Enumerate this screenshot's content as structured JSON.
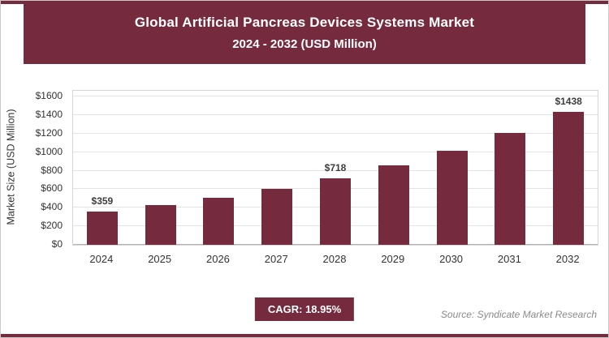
{
  "header": {
    "title_line1": "Global Artificial Pancreas Devices Systems Market",
    "title_line2": "2024 - 2032 (USD Million)"
  },
  "colors": {
    "maroon": "#752B3D",
    "bar": "#752B3D",
    "badge": "#752B3D"
  },
  "chart_data": {
    "type": "bar",
    "title": "Global Artificial Pancreas Devices Systems Market 2024 - 2032 (USD Million)",
    "categories": [
      "2024",
      "2025",
      "2026",
      "2027",
      "2028",
      "2029",
      "2030",
      "2031",
      "2032"
    ],
    "values": [
      359,
      427,
      508,
      604,
      718,
      854,
      1016,
      1209,
      1438
    ],
    "value_labels": [
      "$359",
      "",
      "",
      "",
      "$718",
      "",
      "",
      "",
      "$1438"
    ],
    "xlabel": "",
    "ylabel": "Market Size (USD Million)",
    "ylim": [
      0,
      1600
    ],
    "ytick_step": 200,
    "ytick_prefix": "$",
    "grid": true,
    "legend": false
  },
  "footer": {
    "cagr_label": "CAGR: 18.95%",
    "source": "Source: Syndicate Market Research"
  }
}
